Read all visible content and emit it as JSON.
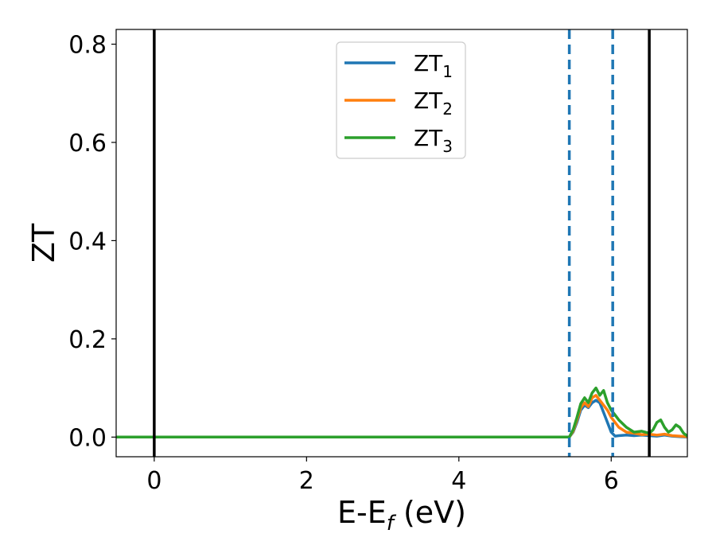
{
  "chart_data": {
    "type": "line",
    "xlabel": "E-E",
    "xlabel_sub": "f",
    "xlabel_unit": " (eV)",
    "ylabel": "ZT",
    "xlim": [
      -0.5,
      7.0
    ],
    "ylim": [
      -0.04,
      0.83
    ],
    "xticks": [
      0,
      2,
      4,
      6
    ],
    "xtick_labels": [
      "0",
      "2",
      "4",
      "6"
    ],
    "yticks": [
      0.0,
      0.2,
      0.4,
      0.6,
      0.8
    ],
    "ytick_labels": [
      "0.0",
      "0.2",
      "0.4",
      "0.6",
      "0.8"
    ],
    "grid": false,
    "legend_position": "top-center",
    "vlines_solid": [
      0.0,
      6.5
    ],
    "vlines_dashed": [
      5.45,
      6.02
    ],
    "vline_solid_color": "#000000",
    "vline_dashed_color": "#1f77b4",
    "series": [
      {
        "name": "ZT",
        "name_sub": "1",
        "color": "#1f77b4",
        "x": [
          -0.5,
          0.0,
          1.0,
          2.0,
          3.0,
          4.0,
          5.0,
          5.45,
          5.5,
          5.55,
          5.6,
          5.65,
          5.7,
          5.75,
          5.8,
          5.85,
          5.9,
          5.95,
          6.0,
          6.05,
          6.1,
          6.2,
          6.3,
          6.4,
          6.5,
          6.6,
          6.7,
          6.8,
          6.9,
          7.0
        ],
        "y": [
          0,
          0,
          0,
          0,
          0,
          0,
          0,
          0,
          0.01,
          0.03,
          0.055,
          0.065,
          0.06,
          0.07,
          0.075,
          0.07,
          0.05,
          0.03,
          0.01,
          0.002,
          0.003,
          0.004,
          0.003,
          0.004,
          0.003,
          0.002,
          0.004,
          0.002,
          0.001,
          0
        ]
      },
      {
        "name": "ZT",
        "name_sub": "2",
        "color": "#ff7f0e",
        "x": [
          -0.5,
          0.0,
          1.0,
          2.0,
          3.0,
          4.0,
          5.0,
          5.45,
          5.5,
          5.55,
          5.6,
          5.65,
          5.7,
          5.75,
          5.8,
          5.85,
          5.9,
          5.95,
          6.0,
          6.05,
          6.1,
          6.2,
          6.3,
          6.4,
          6.5,
          6.6,
          6.7,
          6.8,
          6.9,
          7.0
        ],
        "y": [
          0,
          0,
          0,
          0,
          0,
          0,
          0,
          0,
          0.012,
          0.035,
          0.06,
          0.07,
          0.062,
          0.08,
          0.085,
          0.075,
          0.065,
          0.055,
          0.04,
          0.03,
          0.02,
          0.01,
          0.008,
          0.005,
          0.006,
          0.004,
          0.006,
          0.003,
          0.002,
          0.001
        ]
      },
      {
        "name": "ZT",
        "name_sub": "3",
        "color": "#2ca02c",
        "x": [
          -0.5,
          0.0,
          1.0,
          2.0,
          3.0,
          4.0,
          5.0,
          5.45,
          5.5,
          5.55,
          5.6,
          5.65,
          5.7,
          5.75,
          5.8,
          5.85,
          5.9,
          5.95,
          6.0,
          6.05,
          6.1,
          6.2,
          6.3,
          6.4,
          6.5,
          6.55,
          6.6,
          6.65,
          6.7,
          6.75,
          6.8,
          6.85,
          6.9,
          6.95,
          7.0
        ],
        "y": [
          0,
          0,
          0,
          0,
          0,
          0,
          0,
          0,
          0.015,
          0.04,
          0.068,
          0.08,
          0.07,
          0.09,
          0.1,
          0.085,
          0.095,
          0.07,
          0.055,
          0.045,
          0.035,
          0.02,
          0.01,
          0.012,
          0.008,
          0.015,
          0.03,
          0.035,
          0.02,
          0.01,
          0.015,
          0.025,
          0.02,
          0.008,
          0.002
        ]
      }
    ]
  }
}
